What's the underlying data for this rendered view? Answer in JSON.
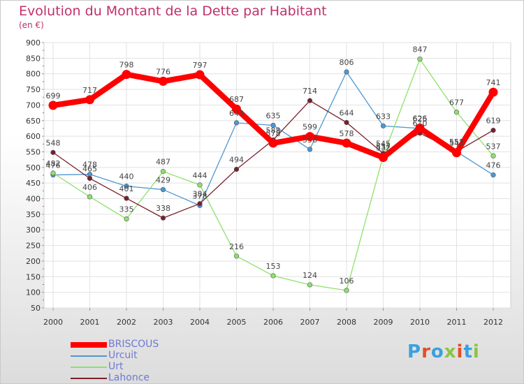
{
  "header": {
    "title": "Evolution du Montant de la Dette par Habitant",
    "unit": "(en €)"
  },
  "brand": {
    "logo_text": "Proxiti",
    "letter_colors": [
      "#3aa0e0",
      "#e04f2a",
      "#3aa0e0",
      "#8ac53f",
      "#e04f2a",
      "#3aa0e0",
      "#8ac53f"
    ]
  },
  "chart_data": {
    "type": "line",
    "title": "Evolution du Montant de la Dette par Habitant",
    "subtitle": "(en €)",
    "xlabel": "",
    "ylabel": "",
    "ylim": [
      50,
      900
    ],
    "yticks": [
      50,
      100,
      150,
      200,
      250,
      300,
      350,
      400,
      450,
      500,
      550,
      600,
      650,
      700,
      750,
      800,
      850,
      900
    ],
    "categories": [
      "2000",
      "2001",
      "2002",
      "2003",
      "2004",
      "2005",
      "2006",
      "2007",
      "2008",
      "2009",
      "2010",
      "2011",
      "2012"
    ],
    "grid": true,
    "legend_position": "bottom-left",
    "series": [
      {
        "name": "BRISCOUS",
        "color": "#ff0000",
        "values": [
          699,
          717,
          798,
          776,
          797,
          687,
          578,
          599,
          578,
          532,
          626,
          547,
          741
        ]
      },
      {
        "name": "Urcuit",
        "color": "#4f97d2",
        "values": [
          476,
          478,
          440,
          429,
          378,
          643,
          635,
          558,
          806,
          633,
          625,
          551,
          476
        ]
      },
      {
        "name": "Urt",
        "color": "#8fe06e",
        "values": [
          482,
          406,
          335,
          487,
          444,
          216,
          153,
          124,
          106,
          537,
          847,
          677,
          537
        ]
      },
      {
        "name": "Lahonce",
        "color": "#7a1f2a",
        "values": [
          548,
          465,
          401,
          338,
          384,
          494,
          588,
          714,
          644,
          545,
          610,
          551,
          619
        ]
      }
    ]
  }
}
